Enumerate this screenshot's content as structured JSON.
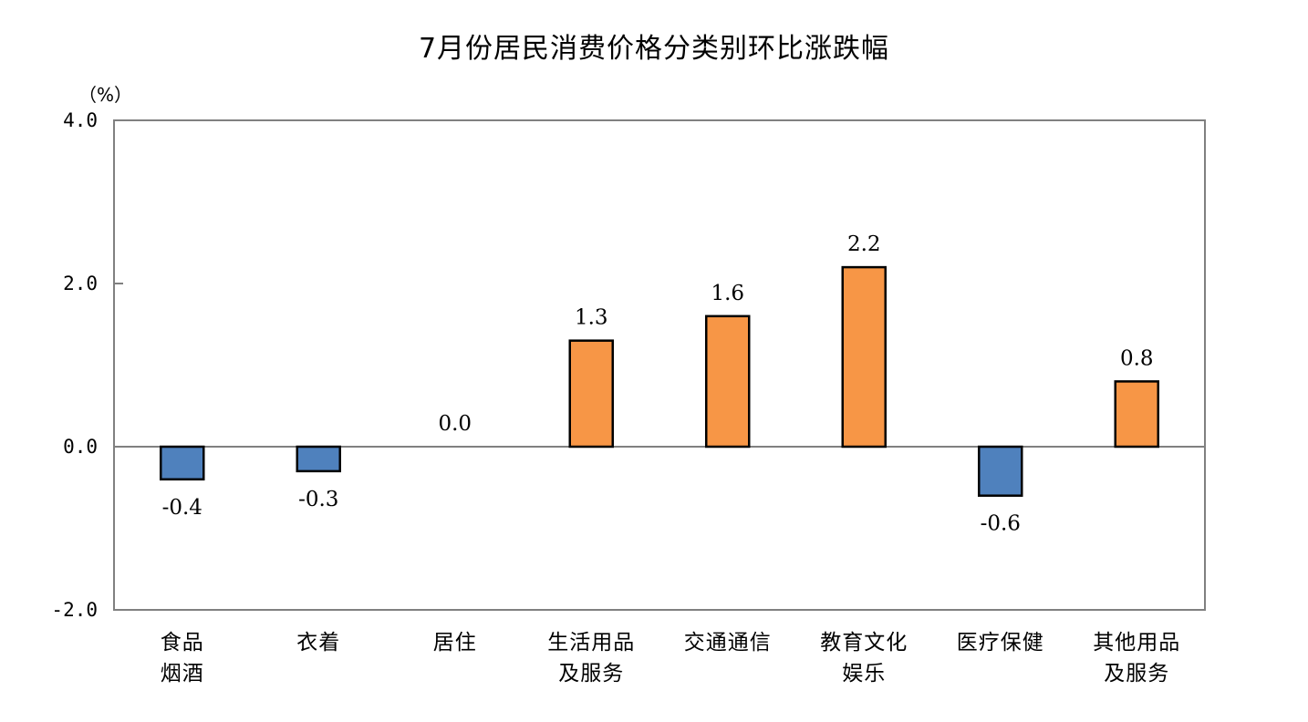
{
  "chart_data": {
    "type": "bar",
    "title": "7月份居民消费价格分类别环比涨跌幅",
    "unit_label": "（%）",
    "xlabel": "",
    "ylabel": "%",
    "ylim": [
      -2.0,
      4.0
    ],
    "yticks": [
      "4.0",
      "2.0",
      "0.0",
      "-2.0"
    ],
    "ytick_values": [
      4,
      2,
      0,
      -2
    ],
    "grid": false,
    "legend": null,
    "categories": [
      "食品烟酒",
      "衣着",
      "居住",
      "生活用品及服务",
      "交通通信",
      "教育文化娱乐",
      "医疗保健",
      "其他用品及服务"
    ],
    "category_lines": [
      [
        "食品",
        "烟酒"
      ],
      [
        "衣着"
      ],
      [
        "居住"
      ],
      [
        "生活用品",
        "及服务"
      ],
      [
        "交通通信"
      ],
      [
        "教育文化",
        "娱乐"
      ],
      [
        "医疗保健"
      ],
      [
        "其他用品",
        "及服务"
      ]
    ],
    "values": [
      -0.4,
      -0.3,
      0.0,
      1.3,
      1.6,
      2.2,
      -0.6,
      0.8
    ],
    "value_labels": [
      "-0.4",
      "-0.3",
      "0.0",
      "1.3",
      "1.6",
      "2.2",
      "-0.6",
      "0.8"
    ],
    "colors": {
      "positive": "#F79646",
      "negative": "#4F81BD",
      "outline": "#000000",
      "axis": "#808080"
    }
  }
}
